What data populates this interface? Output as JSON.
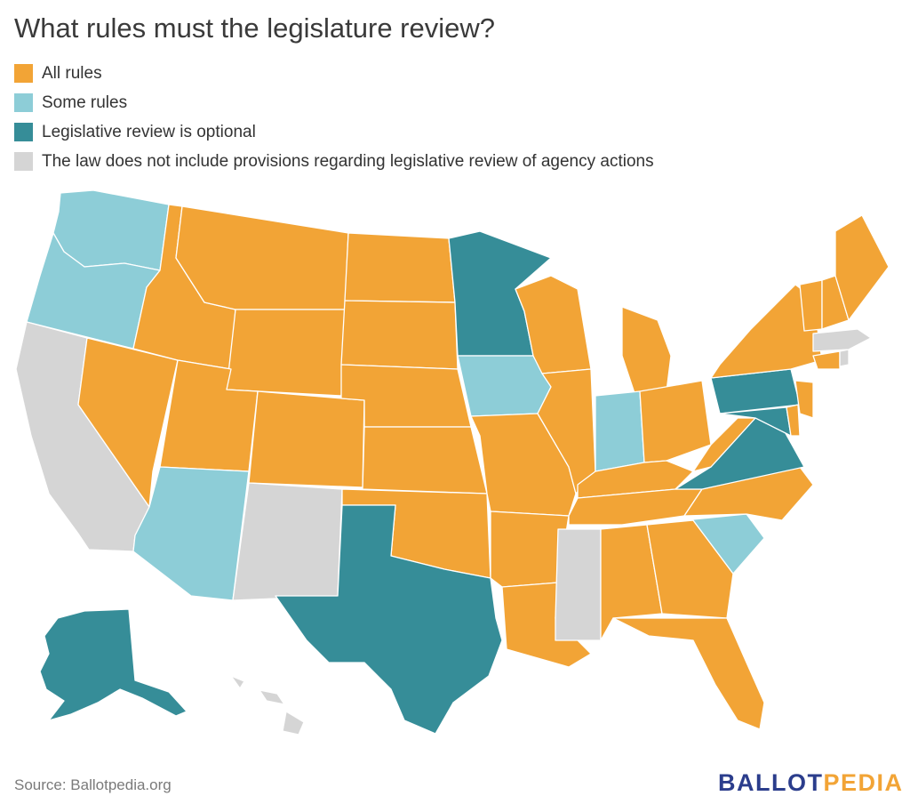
{
  "title": "What rules must the legislature review?",
  "legend": [
    {
      "key": "all",
      "label": "All rules",
      "color": "#f2a436"
    },
    {
      "key": "some",
      "label": "Some rules",
      "color": "#8dcdd7"
    },
    {
      "key": "optional",
      "label": "Legislative review is optional",
      "color": "#368d98"
    },
    {
      "key": "none",
      "label": "The law does not include provisions regarding legislative review of agency actions",
      "color": "#d5d5d5"
    }
  ],
  "map": {
    "region": "United States",
    "legislative_review_by_state": {
      "all": [
        "ID",
        "MT",
        "WY",
        "UT",
        "NV",
        "CO",
        "ND",
        "SD",
        "NE",
        "KS",
        "OK",
        "WI",
        "MI",
        "IL",
        "MO",
        "AR",
        "LA",
        "TN",
        "KY",
        "OH",
        "WV",
        "AL",
        "GA",
        "FL",
        "NC",
        "NY",
        "VT",
        "NH",
        "ME",
        "CT",
        "NJ",
        "DE"
      ],
      "some": [
        "WA",
        "OR",
        "AZ",
        "IA",
        "IN",
        "SC"
      ],
      "optional": [
        "MN",
        "TX",
        "PA",
        "VA",
        "MD",
        "AK"
      ],
      "none": [
        "CA",
        "NM",
        "MS",
        "HI",
        "MA",
        "RI"
      ]
    }
  },
  "source": "Source: Ballotpedia.org",
  "logo": {
    "part1": "BALLOT",
    "part1_color": "#2b3d8c",
    "part2": "PEDIA",
    "part2_color": "#f2a436"
  }
}
